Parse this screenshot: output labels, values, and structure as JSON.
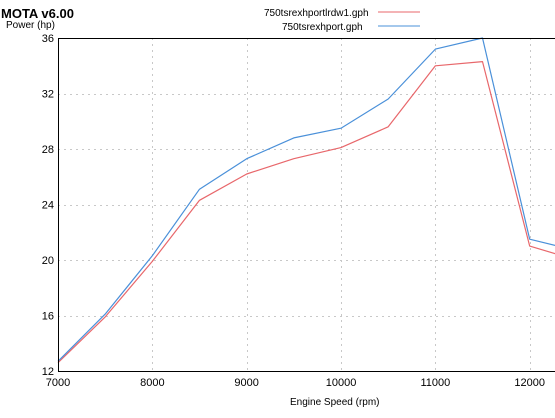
{
  "app_title": "MOTA v6.00",
  "chart_data": {
    "type": "line",
    "title": "",
    "xlabel": "Engine Speed (rpm)",
    "ylabel": "Power (hp)",
    "xlim": [
      7000,
      12300
    ],
    "ylim": [
      12,
      36
    ],
    "x_ticks": [
      7000,
      8000,
      9000,
      10000,
      11000,
      12000
    ],
    "y_ticks": [
      12,
      16,
      20,
      24,
      28,
      32,
      36
    ],
    "grid": true,
    "legend_position": "top-center",
    "series": [
      {
        "name": "750tsrexhportlrdw1.gph",
        "color": "#e8676b",
        "x": [
          7000,
          7500,
          8000,
          8500,
          9000,
          9500,
          10000,
          10500,
          11000,
          11500,
          12000,
          12300
        ],
        "y": [
          12.6,
          15.9,
          19.9,
          24.3,
          26.2,
          27.3,
          28.1,
          29.6,
          34.0,
          34.3,
          21.0,
          20.4
        ]
      },
      {
        "name": "750tsrexhport.gph",
        "color": "#4a90d9",
        "x": [
          7000,
          7500,
          8000,
          8500,
          9000,
          9500,
          10000,
          10500,
          11000,
          11500,
          12000,
          12300
        ],
        "y": [
          12.7,
          16.1,
          20.3,
          25.1,
          27.3,
          28.8,
          29.5,
          31.6,
          35.2,
          36.0,
          21.5,
          21.0
        ]
      }
    ]
  }
}
